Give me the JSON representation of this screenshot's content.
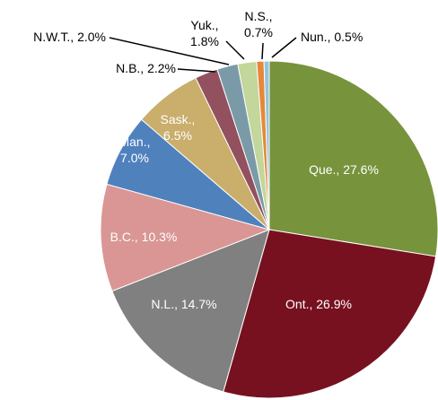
{
  "chart_data": {
    "type": "pie",
    "labels": [
      [
        "Que., ",
        "27.6%"
      ],
      [
        "Ont., ",
        "26.9%"
      ],
      [
        "N.L., ",
        "14.7%"
      ],
      [
        "B.C., ",
        "10.3%"
      ],
      [
        "Man.,",
        "7.0%"
      ],
      [
        "Sask.,",
        "6.5%"
      ],
      [
        "N.B., ",
        "2.2%"
      ],
      [
        "N.W.T., ",
        "2.0%"
      ],
      [
        "Yuk.,",
        "1.8%"
      ],
      [
        "N.S.,",
        "0.7%"
      ],
      [
        "Nun., ",
        "0.5%"
      ]
    ],
    "values": [
      27.6,
      26.9,
      14.7,
      10.3,
      7.0,
      6.5,
      2.2,
      2.0,
      1.8,
      0.7,
      0.5
    ],
    "colors": [
      "#77933c",
      "#771120",
      "#808080",
      "#d99694",
      "#4f81bd",
      "#c9ae6c",
      "#93505f",
      "#7b9aa8",
      "#c3d69b",
      "#e6883a",
      "#93c5de"
    ]
  }
}
